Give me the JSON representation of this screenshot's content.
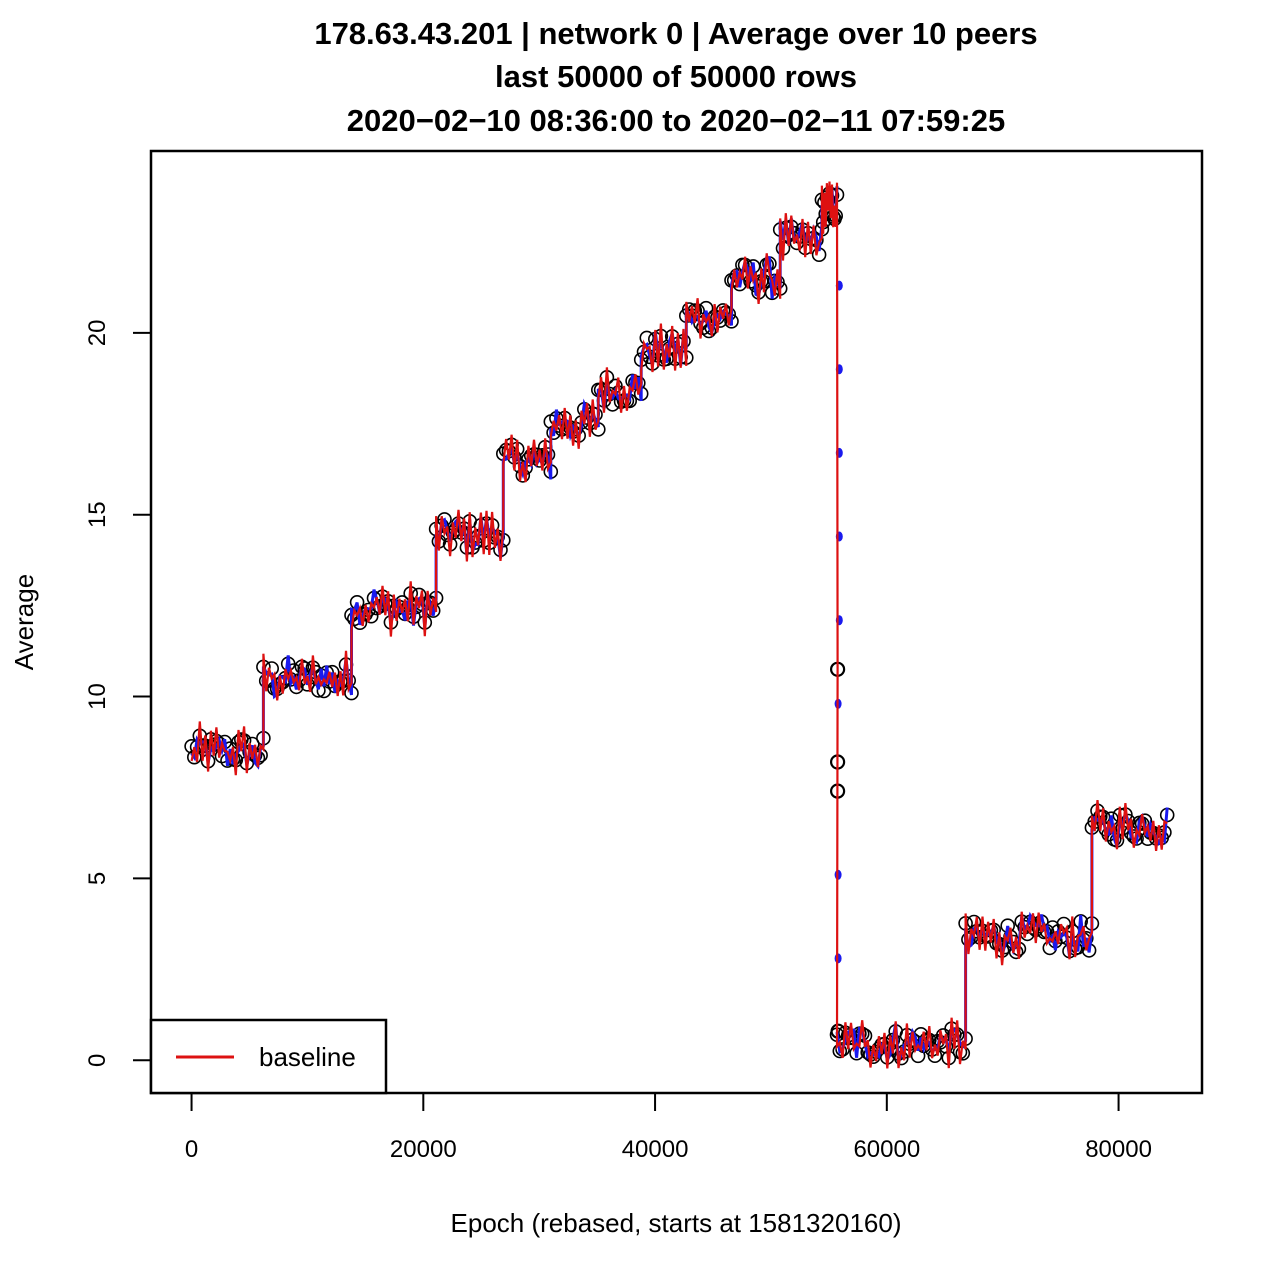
{
  "chart_data": {
    "type": "scatter",
    "title_lines": [
      "178.63.43.201 | network 0 | Average over 10 peers",
      "last 50000 of 50000 rows",
      "2020−02−10 08:36:00 to 2020−02−11 07:59:25"
    ],
    "xlabel": "Epoch (rebased, starts at 1581320160)",
    "ylabel": "Average",
    "xlim": [
      -3500,
      87200
    ],
    "ylim": [
      -0.9,
      25.0
    ],
    "x_ticks": [
      0,
      20000,
      40000,
      60000,
      80000
    ],
    "x_tick_labels": [
      "0",
      "20000",
      "40000",
      "60000",
      "80000"
    ],
    "y_ticks": [
      0,
      5,
      10,
      15,
      20
    ],
    "y_tick_labels": [
      "0",
      "5",
      "10",
      "15",
      "20"
    ],
    "legend": {
      "position": "bottom-left",
      "entries": [
        {
          "label": "baseline",
          "color": "#dd1111"
        }
      ]
    },
    "colors": {
      "points": "#000000",
      "baseline": "#dd1111",
      "secondary": "#1a1aee"
    },
    "plateaus": [
      {
        "x_start": 0,
        "x_end": 6200,
        "y": 8.5
      },
      {
        "x_start": 6200,
        "x_end": 13800,
        "y": 10.5
      },
      {
        "x_start": 13800,
        "x_end": 21100,
        "y": 12.45
      },
      {
        "x_start": 21100,
        "x_end": 26900,
        "y": 14.45
      },
      {
        "x_start": 26900,
        "x_end": 31000,
        "y": 16.5
      },
      {
        "x_start": 31000,
        "x_end": 35100,
        "y": 17.5
      },
      {
        "x_start": 35100,
        "x_end": 38800,
        "y": 18.45
      },
      {
        "x_start": 38800,
        "x_end": 42700,
        "y": 19.5
      },
      {
        "x_start": 42700,
        "x_end": 46600,
        "y": 20.45
      },
      {
        "x_start": 46600,
        "x_end": 50800,
        "y": 21.5
      },
      {
        "x_start": 50800,
        "x_end": 54400,
        "y": 22.5
      },
      {
        "x_start": 54400,
        "x_end": 55700,
        "y": 23.45
      },
      {
        "x_start": 55700,
        "x_end": 66800,
        "y": 0.45
      },
      {
        "x_start": 66800,
        "x_end": 77700,
        "y": 3.4
      },
      {
        "x_start": 77700,
        "x_end": 84200,
        "y": 6.45
      }
    ],
    "transition_points": [
      {
        "x": 55750,
        "y": 10.75
      },
      {
        "x": 55750,
        "y": 8.2
      },
      {
        "x": 55750,
        "y": 7.4
      },
      {
        "x": 55800,
        "y": 0.8
      }
    ],
    "secondary_points": [
      {
        "x": 55900,
        "y": 21.3
      },
      {
        "x": 55900,
        "y": 19.0
      },
      {
        "x": 55900,
        "y": 16.7
      },
      {
        "x": 55900,
        "y": 14.4
      },
      {
        "x": 55900,
        "y": 12.1
      },
      {
        "x": 55800,
        "y": 9.8
      },
      {
        "x": 55800,
        "y": 5.1
      },
      {
        "x": 55800,
        "y": 2.8
      }
    ]
  }
}
